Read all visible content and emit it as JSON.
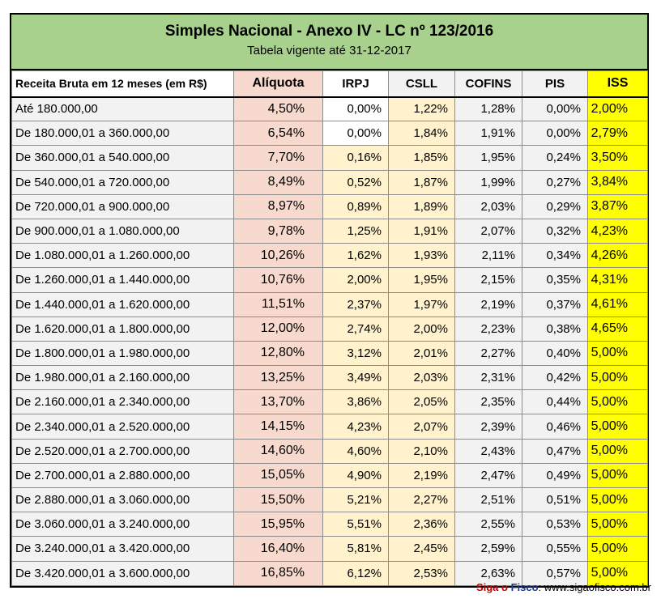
{
  "title": "Simples Nacional - Anexo IV - LC nº 123/2016",
  "subtitle": "Tabela vigente até 31-12-2017",
  "headers": {
    "receita": "Receita Bruta em 12 meses (em R$)",
    "aliquota": "Alíquota",
    "irpj": "IRPJ",
    "csll": "CSLL",
    "cofins": "COFINS",
    "pis": "PIS",
    "iss": "ISS"
  },
  "rows": [
    {
      "receita": "Até 180.000,00",
      "aliquota": "4,50%",
      "irpj": "0,00%",
      "csll": "1,22%",
      "cofins": "1,28%",
      "pis": "0,00%",
      "iss": "2,00%"
    },
    {
      "receita": "De 180.000,01 a 360.000,00",
      "aliquota": "6,54%",
      "irpj": "0,00%",
      "csll": "1,84%",
      "cofins": "1,91%",
      "pis": "0,00%",
      "iss": "2,79%"
    },
    {
      "receita": "De 360.000,01 a 540.000,00",
      "aliquota": "7,70%",
      "irpj": "0,16%",
      "csll": "1,85%",
      "cofins": "1,95%",
      "pis": "0,24%",
      "iss": "3,50%"
    },
    {
      "receita": "De 540.000,01 a 720.000,00",
      "aliquota": "8,49%",
      "irpj": "0,52%",
      "csll": "1,87%",
      "cofins": "1,99%",
      "pis": "0,27%",
      "iss": "3,84%"
    },
    {
      "receita": "De 720.000,01 a 900.000,00",
      "aliquota": "8,97%",
      "irpj": "0,89%",
      "csll": "1,89%",
      "cofins": "2,03%",
      "pis": "0,29%",
      "iss": "3,87%"
    },
    {
      "receita": "De 900.000,01 a 1.080.000,00",
      "aliquota": "9,78%",
      "irpj": "1,25%",
      "csll": "1,91%",
      "cofins": "2,07%",
      "pis": "0,32%",
      "iss": "4,23%"
    },
    {
      "receita": "De 1.080.000,01 a 1.260.000,00",
      "aliquota": "10,26%",
      "irpj": "1,62%",
      "csll": "1,93%",
      "cofins": "2,11%",
      "pis": "0,34%",
      "iss": "4,26%"
    },
    {
      "receita": "De 1.260.000,01 a 1.440.000,00",
      "aliquota": "10,76%",
      "irpj": "2,00%",
      "csll": "1,95%",
      "cofins": "2,15%",
      "pis": "0,35%",
      "iss": "4,31%"
    },
    {
      "receita": "De 1.440.000,01 a 1.620.000,00",
      "aliquota": "11,51%",
      "irpj": "2,37%",
      "csll": "1,97%",
      "cofins": "2,19%",
      "pis": "0,37%",
      "iss": "4,61%"
    },
    {
      "receita": "De 1.620.000,01 a 1.800.000,00",
      "aliquota": "12,00%",
      "irpj": "2,74%",
      "csll": "2,00%",
      "cofins": "2,23%",
      "pis": "0,38%",
      "iss": "4,65%"
    },
    {
      "receita": "De 1.800.000,01 a 1.980.000,00",
      "aliquota": "12,80%",
      "irpj": "3,12%",
      "csll": "2,01%",
      "cofins": "2,27%",
      "pis": "0,40%",
      "iss": "5,00%"
    },
    {
      "receita": "De 1.980.000,01 a 2.160.000,00",
      "aliquota": "13,25%",
      "irpj": "3,49%",
      "csll": "2,03%",
      "cofins": "2,31%",
      "pis": "0,42%",
      "iss": "5,00%"
    },
    {
      "receita": "De 2.160.000,01 a 2.340.000,00",
      "aliquota": "13,70%",
      "irpj": "3,86%",
      "csll": "2,05%",
      "cofins": "2,35%",
      "pis": "0,44%",
      "iss": "5,00%"
    },
    {
      "receita": "De 2.340.000,01 a 2.520.000,00",
      "aliquota": "14,15%",
      "irpj": "4,23%",
      "csll": "2,07%",
      "cofins": "2,39%",
      "pis": "0,46%",
      "iss": "5,00%"
    },
    {
      "receita": "De 2.520.000,01 a 2.700.000,00",
      "aliquota": "14,60%",
      "irpj": "4,60%",
      "csll": "2,10%",
      "cofins": "2,43%",
      "pis": "0,47%",
      "iss": "5,00%"
    },
    {
      "receita": "De 2.700.000,01 a 2.880.000,00",
      "aliquota": "15,05%",
      "irpj": "4,90%",
      "csll": "2,19%",
      "cofins": "2,47%",
      "pis": "0,49%",
      "iss": "5,00%"
    },
    {
      "receita": "De 2.880.000,01 a 3.060.000,00",
      "aliquota": "15,50%",
      "irpj": "5,21%",
      "csll": "2,27%",
      "cofins": "2,51%",
      "pis": "0,51%",
      "iss": "5,00%"
    },
    {
      "receita": "De 3.060.000,01 a 3.240.000,00",
      "aliquota": "15,95%",
      "irpj": "5,51%",
      "csll": "2,36%",
      "cofins": "2,55%",
      "pis": "0,53%",
      "iss": "5,00%"
    },
    {
      "receita": "De 3.240.000,01 a 3.420.000,00",
      "aliquota": "16,40%",
      "irpj": "5,81%",
      "csll": "2,45%",
      "cofins": "2,59%",
      "pis": "0,55%",
      "iss": "5,00%"
    },
    {
      "receita": "De 3.420.000,01 a 3.600.000,00",
      "aliquota": "16,85%",
      "irpj": "6,12%",
      "csll": "2,53%",
      "cofins": "2,63%",
      "pis": "0,57%",
      "iss": "5,00%"
    }
  ],
  "footer": {
    "brand_part1": "Siga o ",
    "brand_part2": "Fisco",
    "brand_colon": ":",
    "url": " www.sigaofisco.com.br"
  },
  "colors": {
    "title_bg": "#a9d18e",
    "aliquota_bg": "#f8d9cd",
    "irpj_csll_bg": "#fff2cc",
    "iss_bg": "#ffff00",
    "grey_bg": "#f2f2f2"
  }
}
